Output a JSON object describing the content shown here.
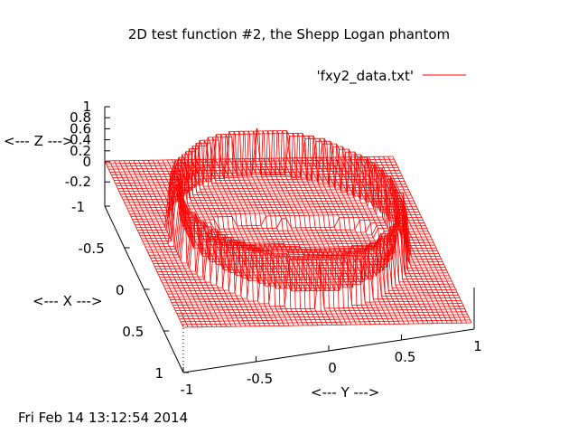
{
  "chart_data": {
    "type": "surface",
    "title": "2D test function #2, the Shepp Logan phantom",
    "legend": {
      "label": "'fxy2_data.txt'",
      "color": "#ff0000",
      "placement": "top-right"
    },
    "xlabel": "<--- X --->",
    "ylabel": "<--- Y --->",
    "zlabel": "<--- Z --->",
    "x_ticks": [
      "-1",
      "-0.5",
      "0",
      "0.5",
      "1"
    ],
    "y_ticks": [
      "-1",
      "-0.5",
      "0",
      "0.5",
      "1"
    ],
    "z_ticks": [
      "1",
      "0.8",
      "0.6",
      "0.4",
      "0.2",
      "0",
      "-0.2"
    ],
    "xlim": [
      -1,
      1
    ],
    "ylim": [
      -1,
      1
    ],
    "zlim": [
      -0.2,
      1
    ],
    "surface": {
      "description_values": {
        "outside": 0,
        "ring_wall": 1,
        "inner_disk": 0.2,
        "inner_dark_ellipses": 0
      }
    },
    "color": "#ff0000",
    "grid": false
  },
  "timestamp": "Fri Feb 14 13:12:54 2014"
}
